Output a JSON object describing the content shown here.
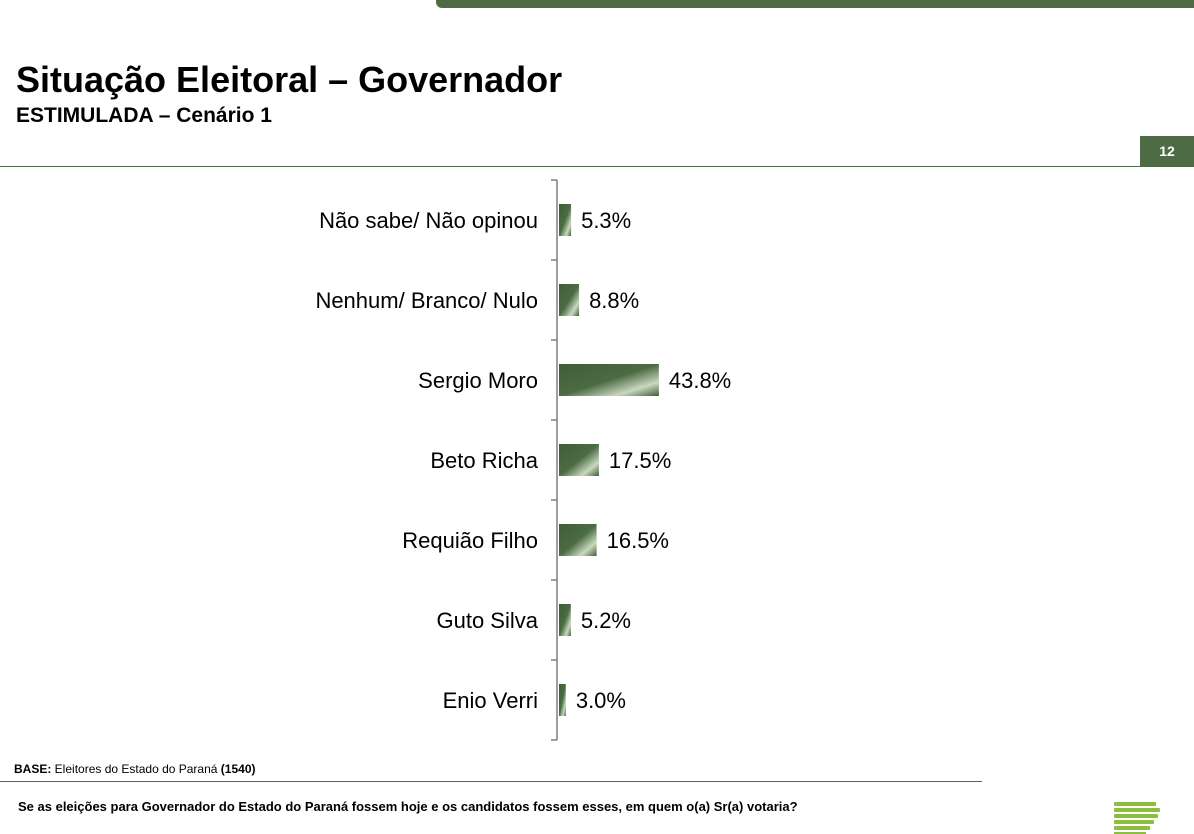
{
  "header": {
    "title": "Situação Eleitoral – Governador",
    "subtitle": "ESTIMULADA – Cenário 1",
    "page_number": "12"
  },
  "colors": {
    "accent": "#4d6b45",
    "bar_dark": "#3f5e37",
    "bar_light": "#c9d8c1",
    "axis": "#7f7f7f",
    "logo": "#8dbf3f"
  },
  "chart_data": {
    "type": "bar",
    "orientation": "horizontal",
    "categories": [
      "Não sabe/ Não opinou",
      "Nenhum/ Branco/ Nulo",
      "Sergio Moro",
      "Beto Richa",
      "Requião Filho",
      "Guto Silva",
      "Enio Verri"
    ],
    "values": [
      5.3,
      8.8,
      43.8,
      17.5,
      16.5,
      5.2,
      3.0
    ],
    "value_labels": [
      "5.3%",
      "8.8%",
      "43.8%",
      "17.5%",
      "16.5%",
      "5.2%",
      "3.0%"
    ],
    "unit": "%",
    "title": "",
    "xlabel": "",
    "ylabel": "",
    "xlim": [
      0,
      100
    ],
    "grid": false,
    "legend": "none"
  },
  "footer": {
    "base_label": "BASE:",
    "base_text": " Eleitores do Estado do Paraná ",
    "base_count": "(1540)",
    "question": "Se as eleições para Governador do Estado do Paraná fossem hoje e os candidatos fossem esses, em quem o(a) Sr(a) votaria?"
  },
  "logo": {
    "icon": "stacked-bars-logo-icon"
  }
}
